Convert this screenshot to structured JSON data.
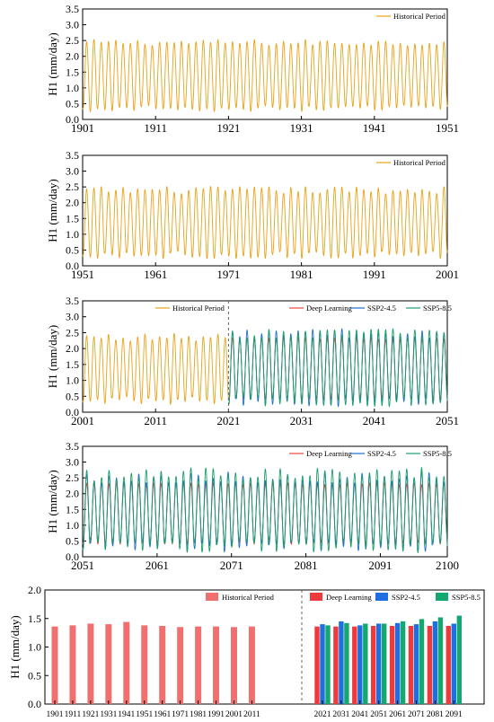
{
  "colors": {
    "historical": "#e8a317",
    "deep_learning": "#e8453c",
    "ssp245": "#1f6fd1",
    "ssp585": "#1a9e6b",
    "bar_historical": "#f07070",
    "bar_deep": "#ee3a3a",
    "bar_ssp245": "#1e6fe0",
    "bar_ssp585": "#12a870"
  },
  "chart_data": [
    {
      "type": "line",
      "ylabel": "H1 (mm/day)",
      "ylim": [
        0,
        3.5
      ],
      "yticks": [
        "0.0",
        "0.5",
        "1.0",
        "1.5",
        "2.0",
        "2.5",
        "3.0",
        "3.5"
      ],
      "xlim": [
        1901,
        1951
      ],
      "xticks": [
        "1901",
        "1911",
        "1921",
        "1931",
        "1941",
        "1951"
      ],
      "legend": {
        "placement": "top-right",
        "entries": [
          "Historical Period"
        ]
      },
      "series": [
        {
          "name": "Historical Period",
          "color_key": "historical",
          "start_year": 1901,
          "end_year": 1951,
          "mean": 1.39,
          "amplitude": 1.05,
          "amplitude_variation": 0.1
        }
      ]
    },
    {
      "type": "line",
      "ylabel": "H1 (mm/day)",
      "ylim": [
        0,
        3.5
      ],
      "yticks": [
        "0.0",
        "0.5",
        "1.0",
        "1.5",
        "2.0",
        "2.5",
        "3.0",
        "3.5"
      ],
      "xlim": [
        1951,
        2001
      ],
      "xticks": [
        "1951",
        "1961",
        "1971",
        "1981",
        "1991",
        "2001"
      ],
      "legend": {
        "placement": "top-right",
        "entries": [
          "Historical Period"
        ]
      },
      "series": [
        {
          "name": "Historical Period",
          "color_key": "historical",
          "start_year": 1951,
          "end_year": 2001,
          "mean": 1.37,
          "amplitude": 1.03,
          "amplitude_variation": 0.12
        }
      ]
    },
    {
      "type": "line",
      "ylabel": "H1 (mm/day)",
      "ylim": [
        0,
        3.5
      ],
      "yticks": [
        "0.0",
        "0.5",
        "1.0",
        "1.5",
        "2.0",
        "2.5",
        "3.0",
        "3.5"
      ],
      "xlim": [
        2001,
        2051
      ],
      "xticks": [
        "2001",
        "2011",
        "2021",
        "2031",
        "2041",
        "2051"
      ],
      "divider_year": 2021,
      "legend_left": {
        "placement": "top-center-left",
        "entries": [
          "Historical Period"
        ]
      },
      "legend": {
        "placement": "top-right",
        "entries": [
          "Deep Learning",
          "SSP2-4.5",
          "SSP5-8.5"
        ]
      },
      "series": [
        {
          "name": "Historical Period",
          "color_key": "historical",
          "start_year": 2001,
          "end_year": 2021,
          "mean": 1.36,
          "amplitude": 1.0,
          "amplitude_variation": 0.12
        },
        {
          "name": "Deep Learning",
          "color_key": "deep_learning",
          "start_year": 2021,
          "end_year": 2051,
          "mean": 1.37,
          "amplitude": 0.95,
          "amplitude_variation": 0.03
        },
        {
          "name": "SSP2-4.5",
          "color_key": "ssp245",
          "start_year": 2021,
          "end_year": 2051,
          "mean": 1.4,
          "amplitude": 1.08,
          "amplitude_variation": 0.17
        },
        {
          "name": "SSP5-8.5",
          "color_key": "ssp585",
          "start_year": 2021,
          "end_year": 2051,
          "mean": 1.4,
          "amplitude": 1.07,
          "amplitude_variation": 0.16
        }
      ]
    },
    {
      "type": "line",
      "ylabel": "H1 (mm/day)",
      "ylim": [
        0,
        3.5
      ],
      "yticks": [
        "0.0",
        "0.5",
        "1.0",
        "1.5",
        "2.0",
        "2.5",
        "3.0",
        "3.5"
      ],
      "xlim": [
        2051,
        2100
      ],
      "xticks": [
        "2051",
        "2061",
        "2071",
        "2081",
        "2091",
        "2100"
      ],
      "legend": {
        "placement": "top-right",
        "entries": [
          "Deep Learning",
          "SSP2-4.5",
          "SSP5-8.5"
        ]
      },
      "series": [
        {
          "name": "Deep Learning",
          "color_key": "deep_learning",
          "start_year": 2051,
          "end_year": 2100,
          "mean": 1.37,
          "amplitude": 0.95,
          "amplitude_variation": 0.03
        },
        {
          "name": "SSP2-4.5",
          "color_key": "ssp245",
          "start_year": 2051,
          "end_year": 2100,
          "mean": 1.42,
          "amplitude": 1.1,
          "amplitude_variation": 0.18
        },
        {
          "name": "SSP5-8.5",
          "color_key": "ssp585",
          "start_year": 2051,
          "end_year": 2100,
          "mean": 1.48,
          "amplitude": 1.15,
          "amplitude_variation": 0.22
        }
      ]
    },
    {
      "type": "bar",
      "ylabel": "H1 (mm/day)",
      "ylim": [
        0,
        2.0
      ],
      "yticks": [
        "0.0",
        "0.5",
        "1.0",
        "1.5",
        "2.0"
      ],
      "legend_left": {
        "placement": "top-center-left",
        "entries": [
          "Historical Period"
        ]
      },
      "legend": {
        "placement": "top-right",
        "entries": [
          "Deep Learning",
          "SSP2-4.5",
          "SSP5-8.5"
        ]
      },
      "historical": {
        "categories": [
          "1901",
          "1911",
          "1921",
          "1931",
          "1941",
          "1951",
          "1961",
          "1971",
          "1981",
          "1991",
          "2001",
          "2011"
        ],
        "values": [
          1.36,
          1.38,
          1.41,
          1.4,
          1.44,
          1.38,
          1.37,
          1.35,
          1.36,
          1.36,
          1.35,
          1.36
        ]
      },
      "future": {
        "categories": [
          "2021",
          "2031",
          "2041",
          "2051",
          "2061",
          "2071",
          "2081",
          "2091"
        ],
        "series": [
          {
            "name": "Deep Learning",
            "values": [
              1.36,
              1.36,
              1.36,
              1.37,
              1.37,
              1.37,
              1.37,
              1.37
            ]
          },
          {
            "name": "SSP2-4.5",
            "values": [
              1.4,
              1.45,
              1.38,
              1.41,
              1.42,
              1.4,
              1.45,
              1.41
            ]
          },
          {
            "name": "SSP5-8.5",
            "values": [
              1.38,
              1.42,
              1.41,
              1.41,
              1.45,
              1.49,
              1.52,
              1.55
            ]
          }
        ]
      }
    }
  ]
}
